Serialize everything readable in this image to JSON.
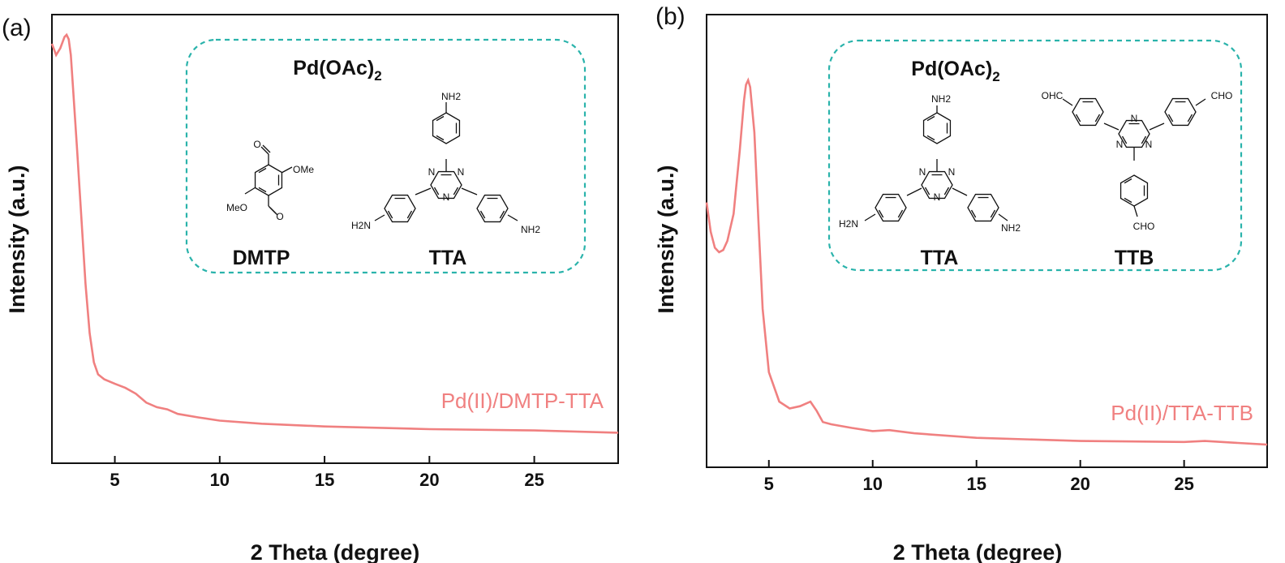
{
  "chart_data": [
    {
      "type": "line",
      "panel": "(a)",
      "xlabel": "2 Theta (degree)",
      "ylabel": "Intensity (a.u.)",
      "xlim": [
        2,
        29
      ],
      "ylim": [
        0,
        1
      ],
      "xticks": [
        "5",
        "10",
        "15",
        "20",
        "25"
      ],
      "yticks_shown": false,
      "grid": false,
      "series": [
        {
          "name": "Pd(II)/DMTP-TTA",
          "color": "#f08080",
          "x": [
            2.0,
            2.2,
            2.4,
            2.6,
            2.7,
            2.8,
            2.9,
            3.0,
            3.2,
            3.4,
            3.6,
            3.8,
            4.0,
            4.2,
            4.5,
            5.0,
            5.5,
            6.0,
            6.5,
            7.0,
            7.5,
            8.0,
            9.0,
            10.0,
            12.0,
            15.0,
            20.0,
            25.0,
            29.0
          ],
          "y": [
            0.935,
            0.91,
            0.925,
            0.95,
            0.955,
            0.945,
            0.91,
            0.84,
            0.7,
            0.55,
            0.4,
            0.29,
            0.225,
            0.198,
            0.187,
            0.177,
            0.168,
            0.155,
            0.135,
            0.125,
            0.12,
            0.11,
            0.102,
            0.095,
            0.088,
            0.082,
            0.076,
            0.073,
            0.068
          ]
        }
      ],
      "inset": {
        "reagent_main": "Pd(OAc)",
        "reagent_sub": "2",
        "molecules": [
          {
            "name": "DMTP",
            "substituents": [
              "OMe",
              "MeO"
            ]
          },
          {
            "name": "TTA",
            "substituents": [
              "NH2",
              "H2N",
              "NH2"
            ]
          }
        ]
      }
    },
    {
      "type": "line",
      "panel": "(b)",
      "xlabel": "2 Theta (degree)",
      "ylabel": "Intensity (a.u.)",
      "xlim": [
        2,
        29
      ],
      "ylim": [
        0,
        1
      ],
      "xticks": [
        "5",
        "10",
        "15",
        "20",
        "25"
      ],
      "yticks_shown": false,
      "grid": false,
      "series": [
        {
          "name": "Pd(II)/TTA-TTB",
          "color": "#f08080",
          "x": [
            2.0,
            2.2,
            2.4,
            2.6,
            2.8,
            3.0,
            3.3,
            3.6,
            3.8,
            3.9,
            4.0,
            4.1,
            4.3,
            4.5,
            4.7,
            5.0,
            5.5,
            6.0,
            6.5,
            7.0,
            7.3,
            7.6,
            8.0,
            9.0,
            10.0,
            10.8,
            12.0,
            15.0,
            20.0,
            25.0,
            26.0,
            29.0
          ],
          "y": [
            0.585,
            0.52,
            0.485,
            0.475,
            0.48,
            0.5,
            0.56,
            0.7,
            0.81,
            0.845,
            0.855,
            0.84,
            0.74,
            0.54,
            0.35,
            0.21,
            0.145,
            0.13,
            0.135,
            0.145,
            0.125,
            0.1,
            0.095,
            0.087,
            0.08,
            0.082,
            0.075,
            0.065,
            0.058,
            0.056,
            0.058,
            0.05
          ]
        }
      ],
      "inset": {
        "reagent_main": "Pd(OAc)",
        "reagent_sub": "2",
        "molecules": [
          {
            "name": "TTA",
            "substituents": [
              "NH2",
              "H2N",
              "NH2"
            ]
          },
          {
            "name": "TTB",
            "substituents": [
              "OHC",
              "CHO",
              "CHO"
            ]
          }
        ]
      }
    }
  ]
}
